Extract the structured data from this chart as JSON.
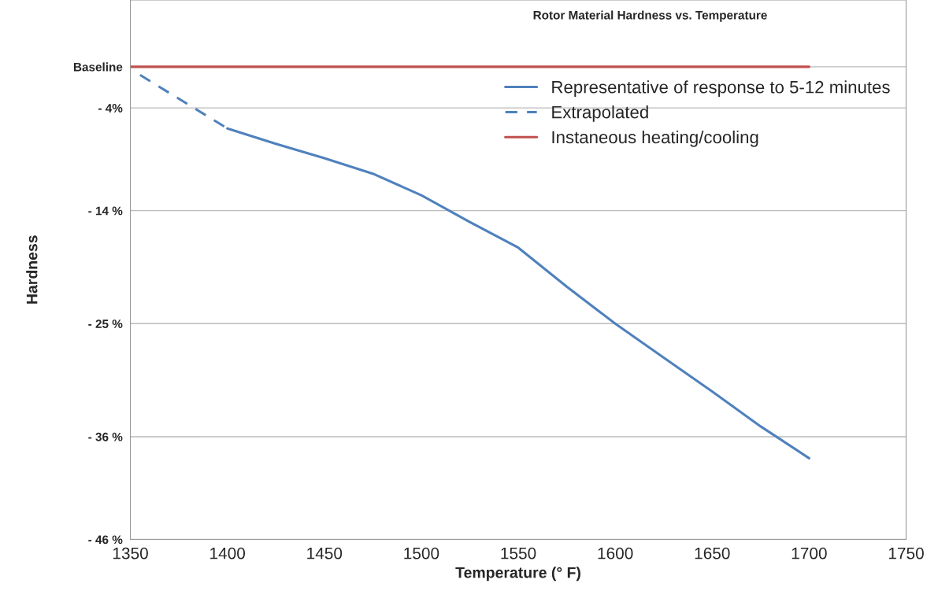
{
  "chart_data": {
    "type": "line",
    "title": "Rotor Material Hardness vs. Temperature",
    "xlabel": "Temperature (° F)",
    "ylabel": "Hardness",
    "xlim": [
      1350,
      1750
    ],
    "xticks": [
      1350,
      1400,
      1450,
      1500,
      1550,
      1600,
      1650,
      1700,
      1750
    ],
    "ylim": [
      -46,
      6.5
    ],
    "yticks": [
      {
        "value": 0,
        "label": "Baseline"
      },
      {
        "value": -4,
        "label": "- 4%"
      },
      {
        "value": -14,
        "label": "- 14 %"
      },
      {
        "value": -25,
        "label": "- 25 %"
      },
      {
        "value": -36,
        "label": "- 36 %"
      },
      {
        "value": -46,
        "label": "- 46 %"
      }
    ],
    "grid": "y",
    "legend": "top right",
    "series": [
      {
        "name": "Representative of response to 5-12 minutes",
        "color": "#4f81bd",
        "line_style": "solid",
        "x": [
          1400,
          1425,
          1450,
          1475,
          1500,
          1525,
          1550,
          1575,
          1600,
          1625,
          1650,
          1675,
          1700
        ],
        "values": [
          -6.0,
          -7.5,
          -8.9,
          -10.4,
          -12.5,
          -15.1,
          -17.6,
          -21.4,
          -25,
          -28.3,
          -31.6,
          -35,
          -38.1
        ]
      },
      {
        "name": "Extrapolated",
        "color": "#4f81bd",
        "line_style": "dashed",
        "x": [
          1355,
          1400
        ],
        "values": [
          -0.8,
          -6.0
        ]
      },
      {
        "name": "Instaneous heating/cooling",
        "color": "#c0504d",
        "line_style": "solid",
        "x": [
          1350,
          1700
        ],
        "values": [
          0,
          0
        ]
      }
    ]
  }
}
